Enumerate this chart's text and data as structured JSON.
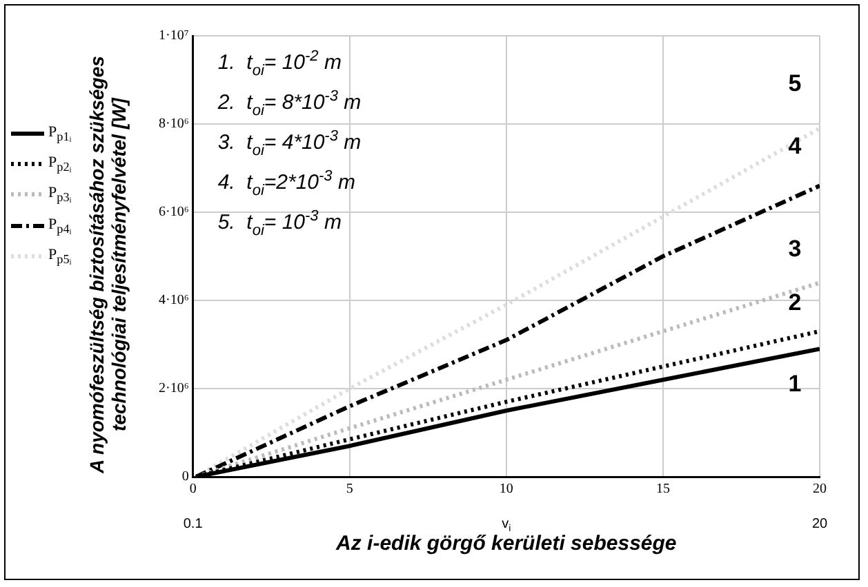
{
  "chart_data": {
    "type": "line",
    "ylabel": "A nyomófeszültség biztosításához szükséges technológiai teljesítményfelvétel [W]",
    "xlabel": "Az i-edik görgő kerületi sebessége",
    "x": [
      0.1,
      5,
      10,
      15,
      20
    ],
    "series": [
      {
        "name": "P$_{p1ᵢ}$",
        "color": "#000000",
        "line_style": "solid",
        "values": [
          0,
          700000,
          1500000,
          2200000,
          2900000
        ]
      },
      {
        "name": "P$_{p2ᵢ}$",
        "color": "#000000",
        "line_style": "dotted",
        "values": [
          0,
          850000,
          1700000,
          2500000,
          3300000
        ]
      },
      {
        "name": "P$_{p3ᵢ}$",
        "color": "#bbbbbb",
        "line_style": "dotted",
        "values": [
          0,
          1100000,
          2200000,
          3300000,
          4400000
        ]
      },
      {
        "name": "P$_{p4ᵢ}$",
        "color": "#000000",
        "line_style": "dashed",
        "values": [
          0,
          1600000,
          3100000,
          5000000,
          6600000
        ]
      },
      {
        "name": "P$_{p5ᵢ}$",
        "color": "#dddddd",
        "line_style": "dotted",
        "values": [
          0,
          2000000,
          3900000,
          5900000,
          7900000
        ]
      }
    ],
    "xlim": [
      0,
      20
    ],
    "xticks": [
      0,
      5,
      10,
      15,
      20
    ],
    "ylim": [
      0,
      10000000
    ],
    "yticks": [
      0,
      {
        "value": 2000000,
        "label": "2·10⁶"
      },
      {
        "value": 4000000,
        "label": "4·10⁶"
      },
      {
        "value": 6000000,
        "label": "6·10⁶"
      },
      {
        "value": 8000000,
        "label": "8·10⁶"
      },
      {
        "value": 10000000,
        "label": "1·10⁷"
      }
    ],
    "grid": true,
    "legend": "left",
    "marker": "none",
    "annotations": [
      "1.  t$_{oi}$= 10$^{-2}$ m",
      "2.  t$_{oi}$= 8*10$^{-3}$ m",
      "3.  t$_{oi}$= 4*10$^{-3}$ m",
      "4.  t$_{oi}$=2*10$^{-3}$ m",
      "5.  t$_{oi}$= 10$^{-3}$ m",
      "1",
      "2",
      "3",
      "4",
      "5",
      "0.1",
      "v$_{i}$",
      "20"
    ]
  }
}
